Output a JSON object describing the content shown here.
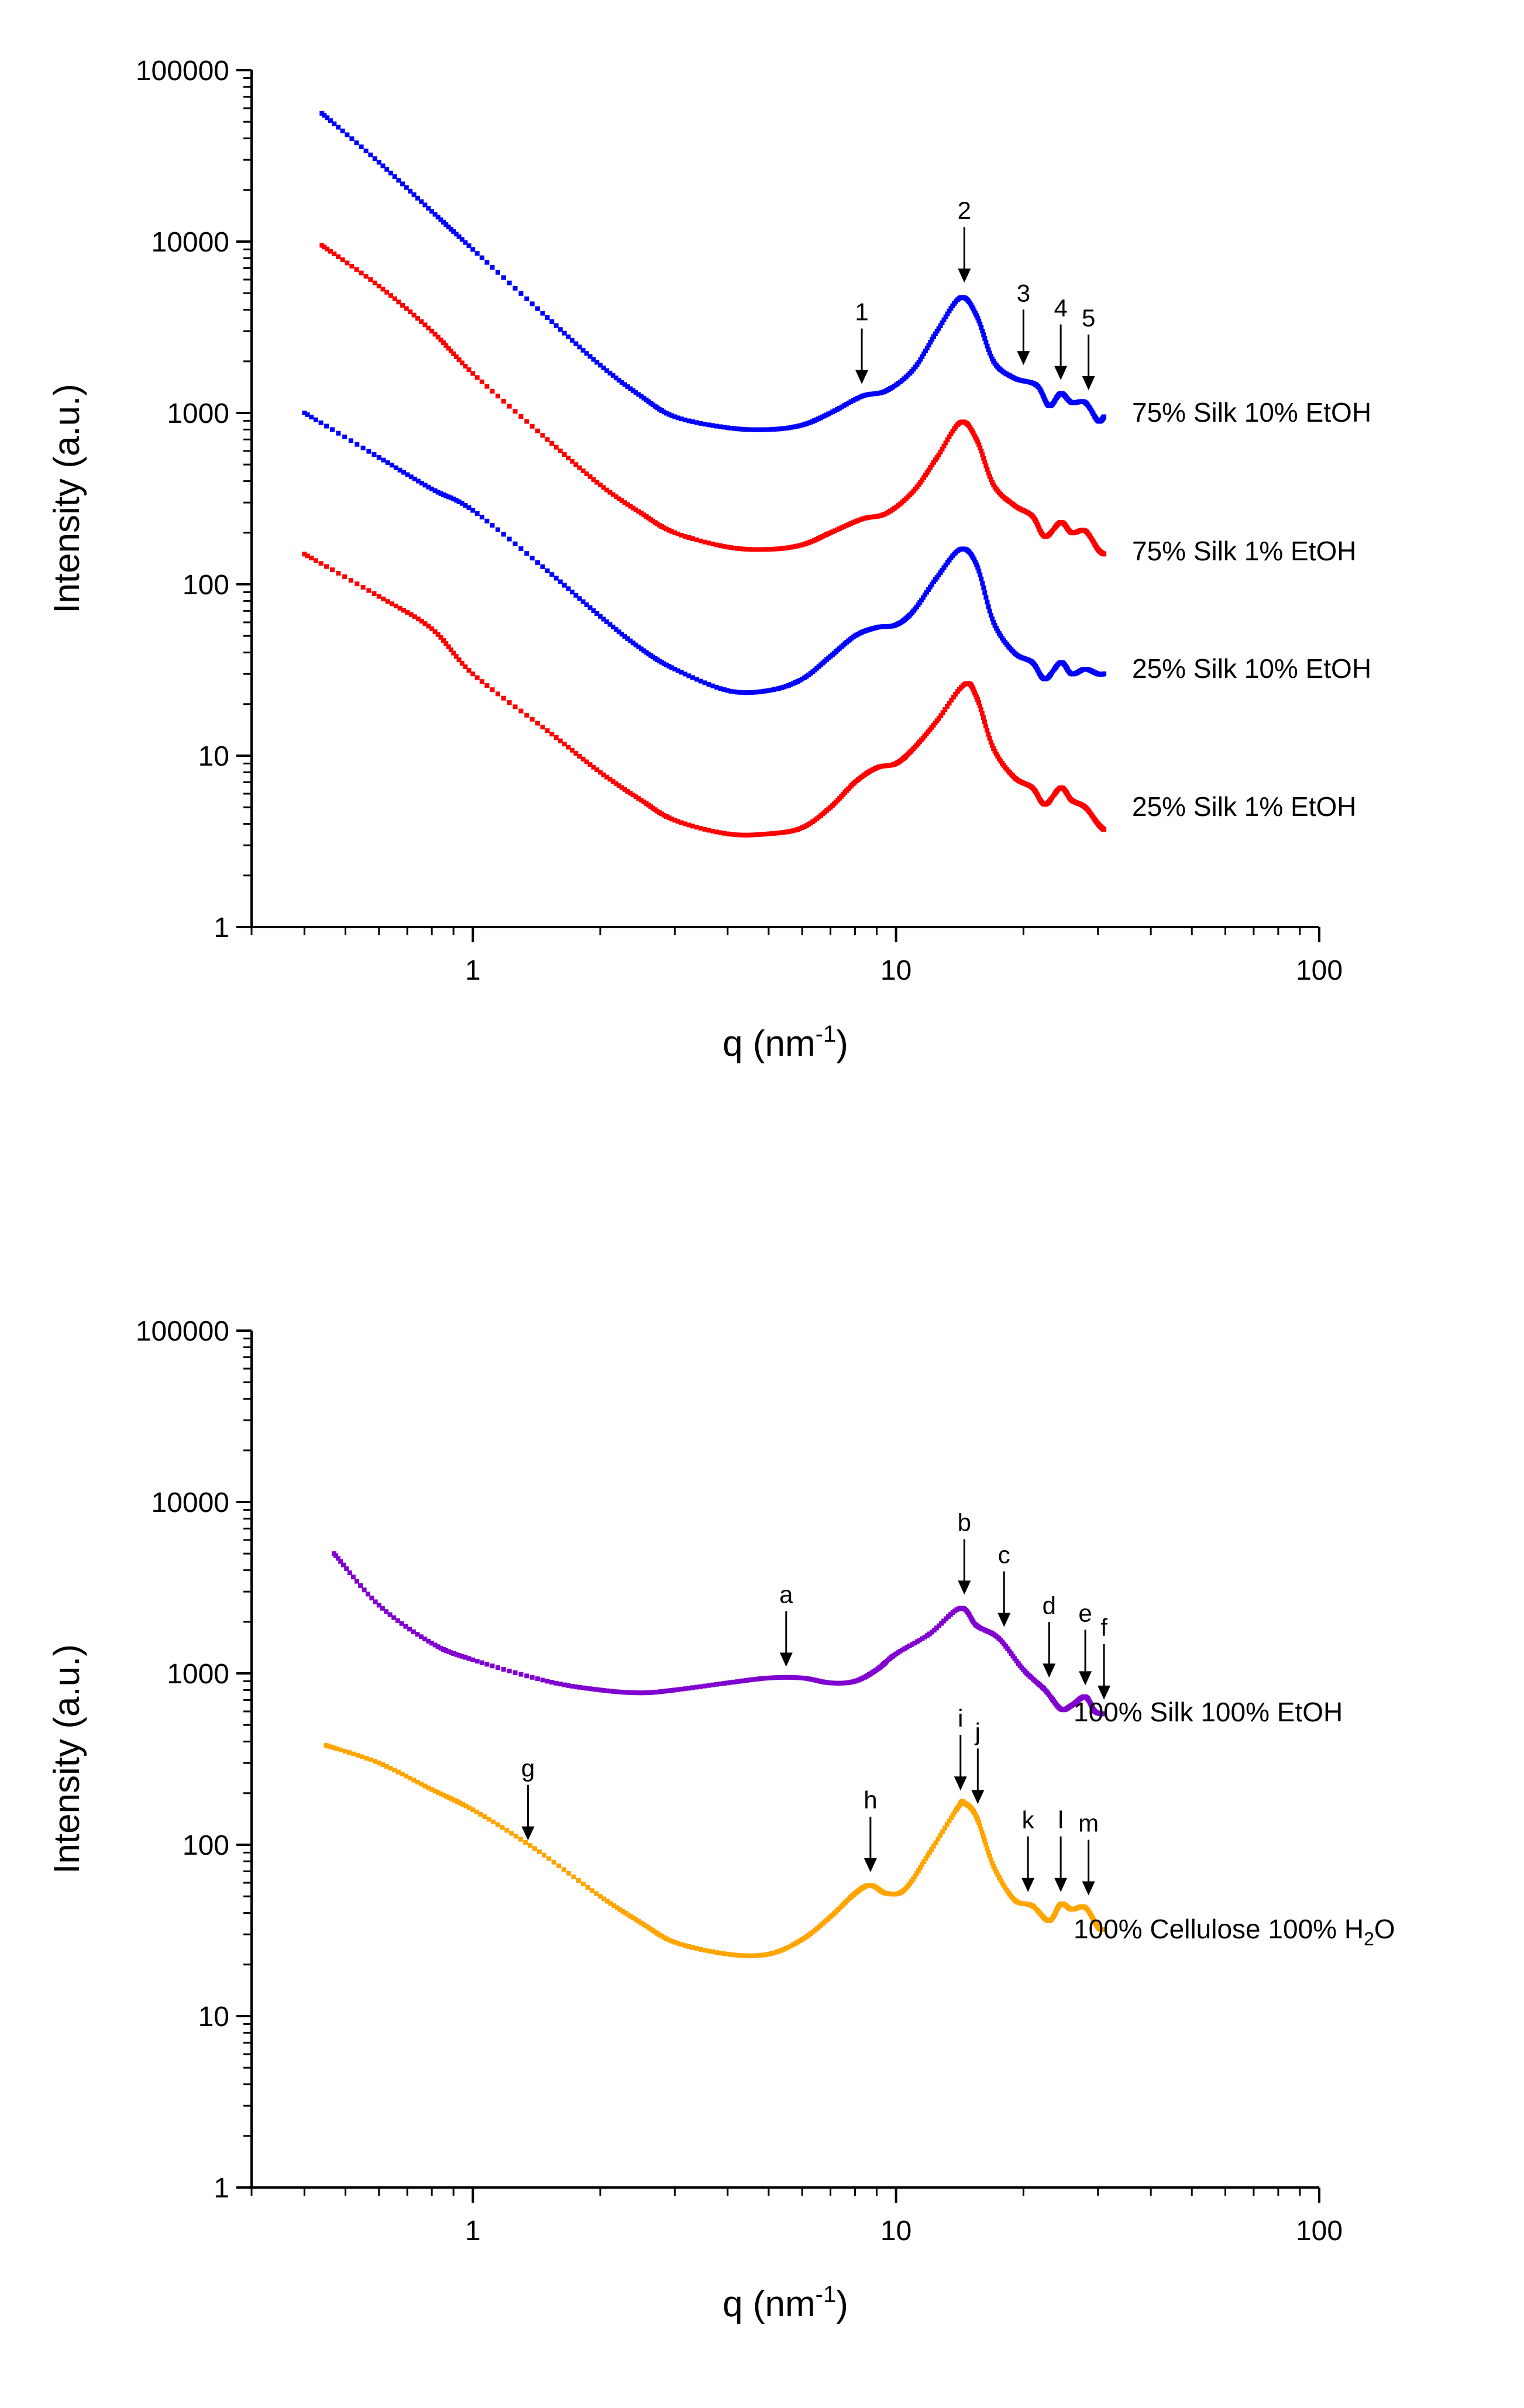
{
  "chart_data": [
    {
      "type": "scatter",
      "panel": "top",
      "xscale": "log",
      "yscale": "log",
      "xlim": [
        0.3,
        100
      ],
      "ylim": [
        1,
        100000
      ],
      "xlabel": "q (nm",
      "xlabel_sup": "-1",
      "xlabel_end": ")",
      "ylabel": "Intensity (a.u.)",
      "xticks": [
        1,
        10,
        100
      ],
      "xtick_labels": [
        "1",
        "10",
        "100"
      ],
      "yticks": [
        1,
        10,
        100,
        1000,
        10000,
        100000
      ],
      "ytick_labels": [
        "1",
        "10",
        "100",
        "1000",
        "10000",
        "100000"
      ],
      "series": [
        {
          "name": "75% Silk 10% EtOH",
          "label_parts": [
            "75% Silk 10% EtOH"
          ],
          "color": "#0000ff",
          "points": [
            [
              0.44,
              56000
            ],
            [
              0.6,
              29000
            ],
            [
              0.8,
              15000
            ],
            [
              1.0,
              9000
            ],
            [
              1.5,
              3600
            ],
            [
              2.0,
              1900
            ],
            [
              2.5,
              1250
            ],
            [
              3.0,
              950
            ],
            [
              4.0,
              820
            ],
            [
              5.0,
              800
            ],
            [
              6.0,
              850
            ],
            [
              7.0,
              1000
            ],
            [
              8.3,
              1250
            ],
            [
              9.5,
              1350
            ],
            [
              11.0,
              1800
            ],
            [
              12.5,
              3000
            ],
            [
              14.2,
              4700
            ],
            [
              15.5,
              3700
            ],
            [
              17.0,
              2000
            ],
            [
              19.0,
              1600
            ],
            [
              21.5,
              1450
            ],
            [
              23.0,
              1100
            ],
            [
              24.5,
              1300
            ],
            [
              26.0,
              1150
            ],
            [
              28.0,
              1150
            ],
            [
              30.0,
              900
            ],
            [
              31.0,
              950
            ]
          ]
        },
        {
          "name": "75% Silk 1% EtOH",
          "label_parts": [
            "75% Silk 1% EtOH"
          ],
          "color": "#ff0000",
          "points": [
            [
              0.44,
              9500
            ],
            [
              0.6,
              5500
            ],
            [
              0.8,
              3000
            ],
            [
              1.0,
              1700
            ],
            [
              1.5,
              700
            ],
            [
              2.0,
              380
            ],
            [
              2.5,
              260
            ],
            [
              3.0,
              200
            ],
            [
              4.0,
              165
            ],
            [
              5.0,
              160
            ],
            [
              6.0,
              170
            ],
            [
              7.0,
              200
            ],
            [
              8.3,
              240
            ],
            [
              9.5,
              260
            ],
            [
              11.0,
              350
            ],
            [
              12.5,
              550
            ],
            [
              14.2,
              880
            ],
            [
              15.5,
              700
            ],
            [
              17.0,
              380
            ],
            [
              19.0,
              290
            ],
            [
              21.0,
              250
            ],
            [
              22.5,
              190
            ],
            [
              24.5,
              230
            ],
            [
              26.0,
              200
            ],
            [
              28.0,
              205
            ],
            [
              30.0,
              160
            ],
            [
              31.0,
              150
            ]
          ]
        },
        {
          "name": "25% Silk 10% EtOH",
          "label_parts": [
            "25% Silk 10% EtOH"
          ],
          "color": "#0000ff",
          "points": [
            [
              0.4,
              1000
            ],
            [
              0.6,
              550
            ],
            [
              0.8,
              360
            ],
            [
              1.0,
              270
            ],
            [
              1.5,
              120
            ],
            [
              2.0,
              65
            ],
            [
              2.5,
              42
            ],
            [
              3.0,
              32
            ],
            [
              4.0,
              24
            ],
            [
              5.0,
              24
            ],
            [
              6.0,
              28
            ],
            [
              7.0,
              38
            ],
            [
              8.0,
              50
            ],
            [
              9.0,
              56
            ],
            [
              10.0,
              58
            ],
            [
              11.0,
              70
            ],
            [
              12.5,
              110
            ],
            [
              14.2,
              160
            ],
            [
              15.5,
              130
            ],
            [
              17.0,
              60
            ],
            [
              19.0,
              40
            ],
            [
              21.0,
              35
            ],
            [
              22.5,
              28
            ],
            [
              24.5,
              35
            ],
            [
              26.0,
              30
            ],
            [
              28.0,
              32
            ],
            [
              30.0,
              30
            ],
            [
              31.0,
              30
            ]
          ]
        },
        {
          "name": "25% Silk 1% EtOH",
          "label_parts": [
            "25% Silk 1% EtOH"
          ],
          "color": "#ff0000",
          "points": [
            [
              0.4,
              150
            ],
            [
              0.6,
              85
            ],
            [
              0.8,
              55
            ],
            [
              1.0,
              30
            ],
            [
              1.5,
              14
            ],
            [
              2.0,
              8
            ],
            [
              2.5,
              5.5
            ],
            [
              3.0,
              4.2
            ],
            [
              4.0,
              3.5
            ],
            [
              5.0,
              3.5
            ],
            [
              6.0,
              3.8
            ],
            [
              7.0,
              5.0
            ],
            [
              8.0,
              7.0
            ],
            [
              9.0,
              8.5
            ],
            [
              10.0,
              9.0
            ],
            [
              11.0,
              11
            ],
            [
              12.5,
              16
            ],
            [
              14.5,
              26
            ],
            [
              15.5,
              22
            ],
            [
              17.0,
              11
            ],
            [
              19.0,
              7.5
            ],
            [
              21.0,
              6.5
            ],
            [
              22.5,
              5.2
            ],
            [
              24.5,
              6.5
            ],
            [
              26.0,
              5.5
            ],
            [
              28.0,
              5.0
            ],
            [
              30.0,
              4.0
            ],
            [
              31.0,
              3.7
            ]
          ]
        }
      ],
      "label_positions": [
        1000,
        155,
        32,
        5
      ],
      "annotations": [
        {
          "text": "1",
          "x": 8.3,
          "y": 1280
        },
        {
          "text": "2",
          "x": 14.5,
          "y": 5000
        },
        {
          "text": "3",
          "x": 20.0,
          "y": 1650
        },
        {
          "text": "4",
          "x": 24.5,
          "y": 1350
        },
        {
          "text": "5",
          "x": 28.5,
          "y": 1180
        }
      ]
    },
    {
      "type": "scatter",
      "panel": "bottom",
      "xscale": "log",
      "yscale": "log",
      "xlim": [
        0.3,
        100
      ],
      "ylim": [
        1,
        100000
      ],
      "xlabel": "q (nm",
      "xlabel_sup": "-1",
      "xlabel_end": ")",
      "ylabel": "Intensity (a.u.)",
      "xticks": [
        1,
        10,
        100
      ],
      "xtick_labels": [
        "1",
        "10",
        "100"
      ],
      "yticks": [
        1,
        10,
        100,
        1000,
        10000,
        100000
      ],
      "ytick_labels": [
        "1",
        "10",
        "100",
        "1000",
        "10000",
        "100000"
      ],
      "series": [
        {
          "name": "100% Silk 100% EtOH",
          "label_parts": [
            "100% Silk 100% EtOH"
          ],
          "color": "#8000d0",
          "points": [
            [
              0.47,
              5000
            ],
            [
              0.6,
              2500
            ],
            [
              0.8,
              1500
            ],
            [
              1.0,
              1200
            ],
            [
              1.5,
              900
            ],
            [
              2.0,
              800
            ],
            [
              2.5,
              770
            ],
            [
              3.0,
              800
            ],
            [
              4.0,
              880
            ],
            [
              5.0,
              940
            ],
            [
              6.0,
              940
            ],
            [
              7.0,
              880
            ],
            [
              8.0,
              900
            ],
            [
              9.0,
              1050
            ],
            [
              10.0,
              1300
            ],
            [
              12.0,
              1700
            ],
            [
              14.2,
              2400
            ],
            [
              15.5,
              1900
            ],
            [
              17.5,
              1600
            ],
            [
              20.0,
              1050
            ],
            [
              22.5,
              800
            ],
            [
              24.5,
              620
            ],
            [
              26.0,
              650
            ],
            [
              28.0,
              730
            ],
            [
              29.5,
              600
            ],
            [
              31.0,
              580
            ]
          ]
        },
        {
          "name": "100% Cellulose 100% H2O",
          "label_parts": [
            "100% Cellulose 100% H",
            "2",
            "O"
          ],
          "color": "#ffa500",
          "points": [
            [
              0.45,
              380
            ],
            [
              0.6,
              300
            ],
            [
              0.8,
              210
            ],
            [
              1.0,
              160
            ],
            [
              1.4,
              95
            ],
            [
              2.0,
              50
            ],
            [
              2.5,
              35
            ],
            [
              3.0,
              27
            ],
            [
              4.0,
              23
            ],
            [
              5.0,
              23
            ],
            [
              6.0,
              28
            ],
            [
              7.0,
              38
            ],
            [
              8.0,
              52
            ],
            [
              8.7,
              58
            ],
            [
              9.5,
              52
            ],
            [
              10.5,
              55
            ],
            [
              12.0,
              90
            ],
            [
              14.0,
              165
            ],
            [
              14.5,
              175
            ],
            [
              15.5,
              145
            ],
            [
              17.0,
              75
            ],
            [
              19.0,
              48
            ],
            [
              21.0,
              44
            ],
            [
              23.0,
              36
            ],
            [
              24.5,
              45
            ],
            [
              26.0,
              42
            ],
            [
              28.0,
              43
            ],
            [
              30.0,
              33
            ],
            [
              31.0,
              32
            ]
          ]
        }
      ],
      "label_positions": [
        590,
        32
      ],
      "annotations": [
        {
          "text": "a",
          "x": 5.5,
          "y": 950
        },
        {
          "text": "b",
          "x": 14.5,
          "y": 2500
        },
        {
          "text": "c",
          "x": 18.0,
          "y": 1620
        },
        {
          "text": "d",
          "x": 23.0,
          "y": 820
        },
        {
          "text": "e",
          "x": 28.0,
          "y": 740
        },
        {
          "text": "f",
          "x": 31.0,
          "y": 610
        },
        {
          "text": "g",
          "x": 1.35,
          "y": 92
        },
        {
          "text": "h",
          "x": 8.7,
          "y": 60
        },
        {
          "text": "i",
          "x": 14.2,
          "y": 180
        },
        {
          "text": "j",
          "x": 15.6,
          "y": 150
        },
        {
          "text": "k",
          "x": 20.5,
          "y": 46
        },
        {
          "text": "l",
          "x": 24.5,
          "y": 46
        },
        {
          "text": "m",
          "x": 28.5,
          "y": 44
        }
      ]
    }
  ]
}
